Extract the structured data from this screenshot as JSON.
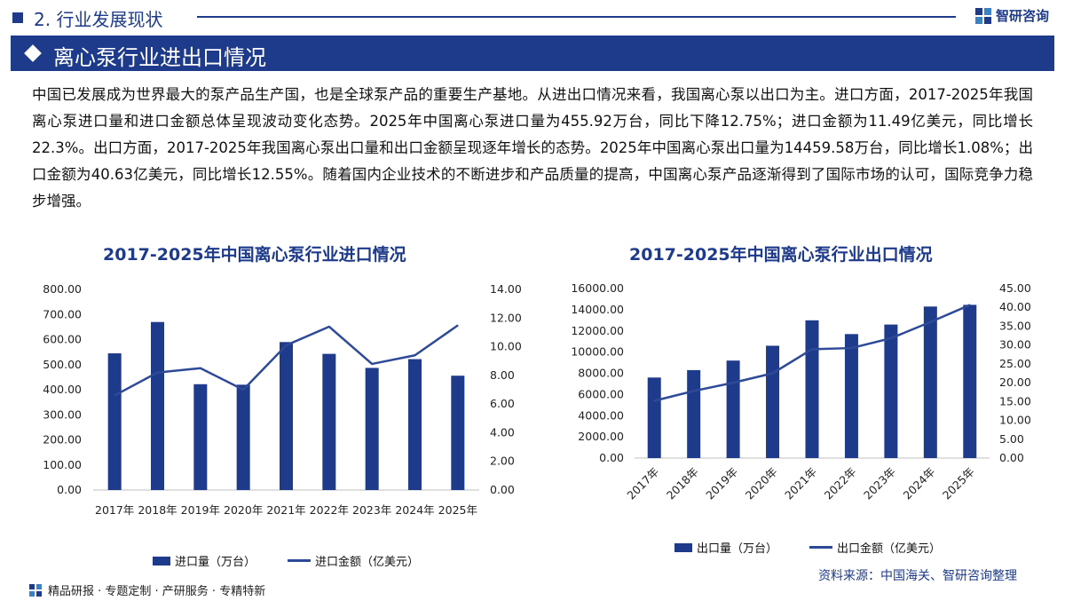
{
  "header": {
    "section_label": "2. 行业发展现状",
    "brand_name": "智研咨询",
    "page_title": "离心泵行业进出口情况"
  },
  "intro_paragraph": "中国已发展成为世界最大的泵产品生产国，也是全球泵产品的重要生产基地。从进出口情况来看，我国离心泵以出口为主。进口方面，2017-2025年我国离心泵进口量和进口金额总体呈现波动变化态势。2025年中国离心泵进口量为455.92万台，同比下降12.75%；进口金额为11.49亿美元，同比增长22.3%。出口方面，2017-2025年我国离心泵出口量和出口金额呈现逐年增长的态势。2025年中国离心泵出口量为14459.58万台，同比增长1.08%；出口金额为40.63亿美元，同比增长12.55%。随着国内企业技术的不断进步和产品质量的提高，中国离心泵产品逐渐得到了国际市场的认可，国际竞争力稳步增强。",
  "colors": {
    "accent": "#1e3a8a",
    "bar": "#1e3a8a",
    "line": "#2e4a97"
  },
  "chart_data": [
    {
      "type": "bar+line",
      "title": "2017-2025年中国离心泵行业进口情况",
      "categories": [
        "2017年",
        "2018年",
        "2019年",
        "2020年",
        "2021年",
        "2022年",
        "2023年",
        "2024年",
        "2025年"
      ],
      "series": [
        {
          "name": "进口量（万台）",
          "type": "bar",
          "axis": "left",
          "values": [
            545,
            670,
            422,
            420,
            590,
            543,
            487,
            522,
            455.92
          ]
        },
        {
          "name": "进口金额（亿美元）",
          "type": "line",
          "axis": "right",
          "values": [
            6.6,
            8.2,
            8.5,
            7.0,
            10.1,
            11.4,
            8.8,
            9.4,
            11.49
          ]
        }
      ],
      "left_axis": {
        "min": 0,
        "max": 800,
        "step": 100,
        "tick_labels": [
          "0.00",
          "100.00",
          "200.00",
          "300.00",
          "400.00",
          "500.00",
          "600.00",
          "700.00",
          "800.00"
        ]
      },
      "right_axis": {
        "min": 0,
        "max": 14,
        "step": 2,
        "tick_labels": [
          "0.00",
          "2.00",
          "4.00",
          "6.00",
          "8.00",
          "10.00",
          "12.00",
          "14.00"
        ]
      },
      "legend": {
        "bar_label": "进口量（万台）",
        "line_label": "进口金额（亿美元）"
      }
    },
    {
      "type": "bar+line",
      "title": "2017-2025年中国离心泵行业出口情况",
      "categories": [
        "2017年",
        "2018年",
        "2019年",
        "2020年",
        "2021年",
        "2022年",
        "2023年",
        "2024年",
        "2025年"
      ],
      "series": [
        {
          "name": "出口量（万台）",
          "type": "bar",
          "axis": "left",
          "values": [
            7600,
            8300,
            9200,
            10600,
            13000,
            11700,
            12600,
            14300,
            14459.58
          ]
        },
        {
          "name": "出口金额（亿美元）",
          "type": "line",
          "axis": "right",
          "values": [
            15.2,
            17.8,
            20.0,
            22.5,
            28.9,
            29.2,
            31.8,
            36.1,
            40.63
          ]
        }
      ],
      "left_axis": {
        "min": 0,
        "max": 16000,
        "step": 2000,
        "tick_labels": [
          "0.00",
          "2000.00",
          "4000.00",
          "6000.00",
          "8000.00",
          "10000.00",
          "12000.00",
          "14000.00",
          "16000.00"
        ]
      },
      "right_axis": {
        "min": 0,
        "max": 45,
        "step": 5,
        "tick_labels": [
          "0.00",
          "5.00",
          "10.00",
          "15.00",
          "20.00",
          "25.00",
          "30.00",
          "35.00",
          "40.00",
          "45.00"
        ]
      },
      "legend": {
        "bar_label": "出口量（万台）",
        "line_label": "出口金额（亿美元）"
      }
    }
  ],
  "source": "资料来源：中国海关、智研咨询整理",
  "footer": {
    "tagline": "精品研报 · 专题定制 · 产研服务 · 专精特新"
  }
}
